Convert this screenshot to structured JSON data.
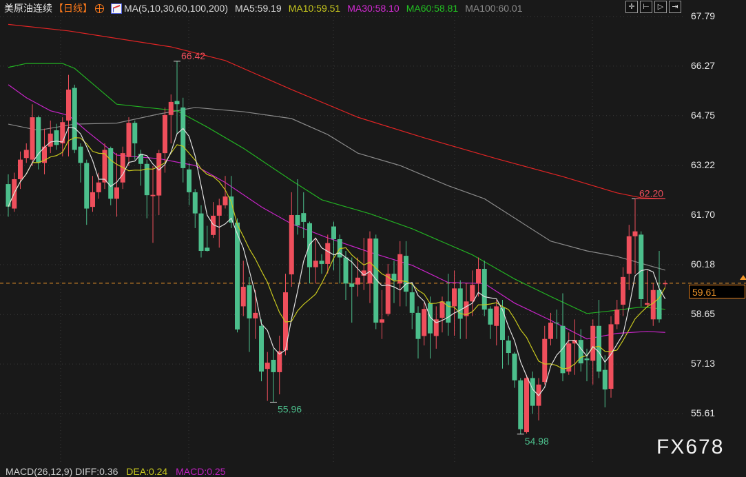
{
  "header": {
    "instrument": "美原油连续",
    "period": "【日线】",
    "ma_definition": "MA(5,10,30,60,100,200)",
    "ma_values": [
      {
        "label": "MA5:59.19",
        "color": "#dcdcdc"
      },
      {
        "label": "MA10:59.51",
        "color": "#c8c81e"
      },
      {
        "label": "MA30:58.10",
        "color": "#d42ad4"
      },
      {
        "label": "MA60:58.81",
        "color": "#22c022"
      },
      {
        "label": "MA100:60.01",
        "color": "#8a8a8a"
      }
    ]
  },
  "toolbar": {
    "icons": [
      "crosshair-icon",
      "zoom-range-icon",
      "step-forward-icon",
      "move-right-icon"
    ],
    "glyphs": [
      "✛",
      "⊢",
      "▷",
      "⇥"
    ]
  },
  "current_price": {
    "label": "59.61",
    "value": 59.61,
    "color": "#f0962a"
  },
  "watermark": "FX678",
  "macd": {
    "def": "MACD(26,12,9) DIFF:0.36",
    "dea": "DEA:0.24",
    "macd": "MACD:0.25",
    "colors": {
      "def": "#cfcfcf",
      "dea": "#c8c81e",
      "macd": "#c020c0"
    }
  },
  "chart_data": {
    "type": "candlestick",
    "ylim": [
      54.7,
      67.79
    ],
    "y_ticks": [
      "67.79",
      "66.27",
      "64.75",
      "63.22",
      "61.70",
      "60.18",
      "58.65",
      "57.13",
      "55.61"
    ],
    "grid": true,
    "colors": {
      "up": "#ef4f5c",
      "down": "#4cbf8c"
    },
    "candles_ohlc": [
      [
        62.65,
        62.95,
        61.65,
        61.96
      ],
      [
        61.9,
        63.0,
        61.8,
        62.8
      ],
      [
        62.8,
        63.65,
        62.5,
        63.4
      ],
      [
        63.45,
        63.9,
        63.3,
        63.7
      ],
      [
        63.4,
        65.1,
        63.2,
        64.7
      ],
      [
        64.7,
        64.75,
        63.1,
        63.3
      ],
      [
        63.3,
        64.35,
        62.95,
        63.8
      ],
      [
        63.8,
        64.6,
        63.6,
        64.2
      ],
      [
        64.3,
        64.5,
        63.7,
        63.85
      ],
      [
        63.9,
        64.7,
        63.5,
        64.55
      ],
      [
        64.6,
        66.0,
        63.5,
        65.55
      ],
      [
        65.6,
        65.7,
        63.6,
        63.7
      ],
      [
        63.8,
        63.9,
        62.7,
        63.3
      ],
      [
        63.3,
        63.4,
        61.4,
        61.9
      ],
      [
        61.95,
        62.9,
        61.8,
        62.4
      ],
      [
        62.4,
        63.0,
        62.2,
        62.7
      ],
      [
        62.7,
        63.9,
        62.5,
        63.7
      ],
      [
        63.75,
        63.8,
        62.0,
        62.2
      ],
      [
        62.2,
        63.6,
        61.65,
        62.55
      ],
      [
        62.7,
        63.8,
        62.5,
        63.6
      ],
      [
        63.48,
        64.7,
        63.2,
        64.53
      ],
      [
        64.53,
        64.6,
        63.4,
        63.9
      ],
      [
        63.58,
        63.7,
        62.6,
        63.27
      ],
      [
        63.27,
        63.4,
        61.6,
        62.31
      ],
      [
        62.28,
        63.2,
        60.85,
        62.32
      ],
      [
        62.3,
        63.7,
        61.7,
        63.6
      ],
      [
        63.6,
        65.0,
        63.0,
        64.77
      ],
      [
        64.77,
        65.4,
        63.9,
        65.17
      ],
      [
        65.2,
        66.42,
        64.2,
        65.1
      ],
      [
        65.0,
        65.3,
        62.7,
        63.14
      ],
      [
        63.1,
        63.3,
        62.0,
        62.4
      ],
      [
        62.4,
        62.5,
        61.3,
        61.75
      ],
      [
        61.75,
        62.0,
        60.4,
        60.6
      ],
      [
        60.7,
        61.37,
        60.58,
        60.6
      ],
      [
        61.09,
        62.1,
        61.0,
        61.68
      ],
      [
        61.68,
        62.2,
        60.7,
        62.0
      ],
      [
        62.0,
        62.9,
        61.9,
        62.27
      ],
      [
        62.27,
        62.9,
        61.3,
        61.47
      ],
      [
        61.47,
        61.6,
        58.1,
        58.19
      ],
      [
        58.9,
        60.3,
        58.6,
        59.5
      ],
      [
        59.55,
        59.8,
        57.5,
        58.53
      ],
      [
        58.53,
        59.4,
        57.9,
        58.7
      ],
      [
        58.3,
        58.5,
        56.6,
        56.9
      ],
      [
        56.98,
        57.5,
        56.0,
        57.17
      ],
      [
        57.26,
        57.6,
        55.96,
        56.88
      ],
      [
        56.88,
        58.0,
        56.2,
        57.52
      ],
      [
        57.55,
        59.9,
        57.4,
        59.33
      ],
      [
        59.88,
        62.4,
        59.5,
        61.7
      ],
      [
        61.7,
        62.8,
        61.1,
        61.38
      ],
      [
        61.76,
        62.4,
        61.0,
        61.49
      ],
      [
        61.45,
        61.5,
        59.6,
        60.1
      ],
      [
        60.1,
        61.0,
        59.6,
        60.3
      ],
      [
        60.3,
        60.5,
        59.9,
        60.2
      ],
      [
        60.2,
        61.1,
        59.9,
        60.84
      ],
      [
        61.35,
        61.5,
        60.0,
        60.96
      ],
      [
        60.96,
        61.1,
        59.6,
        60.4
      ],
      [
        60.4,
        60.6,
        59.1,
        59.6
      ],
      [
        59.6,
        60.4,
        58.4,
        59.5
      ],
      [
        59.57,
        60.4,
        59.2,
        59.78
      ],
      [
        59.84,
        61.0,
        59.4,
        60.0
      ],
      [
        59.6,
        61.2,
        59.0,
        60.98
      ],
      [
        60.98,
        61.1,
        58.2,
        58.4
      ],
      [
        58.4,
        59.4,
        57.9,
        58.5
      ],
      [
        58.67,
        60.2,
        58.6,
        59.9
      ],
      [
        59.9,
        60.3,
        59.0,
        59.7
      ],
      [
        59.6,
        60.9,
        58.9,
        60.5
      ],
      [
        60.45,
        60.9,
        58.9,
        59.35
      ],
      [
        59.33,
        59.6,
        58.2,
        58.7
      ],
      [
        58.7,
        58.9,
        57.3,
        57.9
      ],
      [
        57.99,
        59.0,
        57.7,
        58.82
      ],
      [
        59.0,
        59.2,
        57.3,
        58.07
      ],
      [
        57.99,
        58.9,
        57.6,
        58.5
      ],
      [
        58.55,
        59.2,
        58.1,
        59.05
      ],
      [
        59.05,
        59.9,
        58.0,
        58.4
      ],
      [
        58.9,
        60.0,
        58.0,
        59.45
      ],
      [
        59.45,
        59.7,
        57.9,
        58.52
      ],
      [
        58.6,
        59.6,
        57.9,
        59.05
      ],
      [
        59.05,
        60.0,
        58.6,
        59.56
      ],
      [
        59.6,
        60.4,
        59.2,
        60.05
      ],
      [
        60.05,
        60.3,
        58.6,
        58.8
      ],
      [
        58.83,
        58.9,
        57.9,
        58.34
      ],
      [
        58.3,
        59.1,
        57.7,
        58.9
      ],
      [
        58.86,
        59.1,
        56.99,
        57.87
      ],
      [
        57.85,
        58.0,
        57.1,
        57.47
      ],
      [
        57.45,
        57.5,
        56.4,
        56.63
      ],
      [
        56.63,
        56.7,
        54.98,
        55.13
      ],
      [
        55.04,
        56.8,
        55.0,
        56.7
      ],
      [
        56.7,
        56.9,
        55.6,
        55.85
      ],
      [
        55.85,
        56.7,
        55.4,
        56.5
      ],
      [
        56.58,
        58.3,
        56.5,
        57.9
      ],
      [
        57.9,
        58.7,
        57.7,
        58.4
      ],
      [
        58.4,
        58.8,
        57.9,
        58.38
      ],
      [
        58.3,
        59.3,
        56.6,
        56.85
      ],
      [
        56.9,
        58.1,
        56.8,
        57.76
      ],
      [
        57.76,
        58.5,
        56.8,
        57.87
      ],
      [
        57.87,
        58.2,
        56.9,
        57.15
      ],
      [
        57.3,
        57.6,
        56.6,
        57.25
      ],
      [
        57.23,
        58.5,
        56.5,
        58.3
      ],
      [
        58.3,
        59.1,
        56.7,
        56.9
      ],
      [
        56.95,
        57.4,
        55.8,
        56.35
      ],
      [
        56.37,
        58.6,
        56.1,
        58.35
      ],
      [
        58.35,
        59.1,
        58.2,
        58.8
      ],
      [
        58.95,
        60.1,
        58.6,
        59.8
      ],
      [
        59.9,
        61.4,
        59.4,
        61.05
      ],
      [
        61.05,
        62.2,
        59.9,
        61.2
      ],
      [
        61.1,
        61.2,
        58.9,
        59.12
      ],
      [
        58.95,
        60.0,
        58.9,
        59.0
      ],
      [
        58.5,
        59.6,
        58.3,
        59.4
      ],
      [
        59.4,
        60.6,
        58.4,
        58.5
      ],
      [
        59.58,
        59.7,
        59.5,
        59.61
      ]
    ],
    "moving_averages": [
      {
        "name": "MA200",
        "color": "#e02424",
        "points": [
          [
            0,
            67.55
          ],
          [
            10,
            67.35
          ],
          [
            27,
            66.86
          ],
          [
            36,
            66.44
          ],
          [
            47,
            65.55
          ],
          [
            58,
            64.7
          ],
          [
            69,
            64.07
          ],
          [
            81,
            63.43
          ],
          [
            92,
            62.88
          ],
          [
            101,
            62.38
          ],
          [
            105,
            62.23
          ],
          [
            109,
            62.2
          ]
        ]
      },
      {
        "name": "MA100",
        "color": "#8a8a8a",
        "points": [
          [
            0,
            64.49
          ],
          [
            5,
            64.3
          ],
          [
            11,
            64.49
          ],
          [
            18,
            64.52
          ],
          [
            25,
            64.8
          ],
          [
            31,
            65.0
          ],
          [
            39,
            64.87
          ],
          [
            47,
            64.66
          ],
          [
            53,
            64.17
          ],
          [
            58,
            63.6
          ],
          [
            65,
            63.22
          ],
          [
            73,
            62.6
          ],
          [
            79,
            62.2
          ],
          [
            85,
            61.49
          ],
          [
            90,
            60.9
          ],
          [
            96,
            60.6
          ],
          [
            101,
            60.43
          ],
          [
            109,
            60.01
          ]
        ]
      },
      {
        "name": "MA60",
        "color": "#22b022",
        "points": [
          [
            0,
            66.23
          ],
          [
            3,
            66.35
          ],
          [
            9,
            66.35
          ],
          [
            11,
            66.2
          ],
          [
            18,
            65.1
          ],
          [
            25,
            64.96
          ],
          [
            28,
            64.9
          ],
          [
            33,
            64.4
          ],
          [
            39,
            63.75
          ],
          [
            47,
            62.76
          ],
          [
            52,
            62.17
          ],
          [
            60,
            61.74
          ],
          [
            67,
            61.28
          ],
          [
            77,
            60.48
          ],
          [
            84,
            59.74
          ],
          [
            90,
            59.2
          ],
          [
            96,
            58.68
          ],
          [
            101,
            58.78
          ],
          [
            105,
            58.88
          ],
          [
            109,
            58.81
          ]
        ]
      },
      {
        "name": "MA30",
        "color": "#c824c8",
        "points": [
          [
            0,
            65.7
          ],
          [
            3,
            65.3
          ],
          [
            7,
            64.9
          ],
          [
            10,
            64.76
          ],
          [
            13,
            64.28
          ],
          [
            18,
            63.54
          ],
          [
            25,
            63.43
          ],
          [
            31,
            63.22
          ],
          [
            36,
            62.7
          ],
          [
            42,
            61.95
          ],
          [
            47,
            61.43
          ],
          [
            53,
            61.0
          ],
          [
            60,
            60.56
          ],
          [
            67,
            60.16
          ],
          [
            73,
            59.63
          ],
          [
            79,
            59.6
          ],
          [
            84,
            59.0
          ],
          [
            90,
            58.47
          ],
          [
            96,
            57.9
          ],
          [
            101,
            58.07
          ],
          [
            106,
            58.13
          ],
          [
            109,
            58.1
          ]
        ]
      }
    ],
    "computed_averages": [
      {
        "name": "MA10",
        "period": 10,
        "color": "#c8c81e"
      },
      {
        "name": "MA5",
        "period": 5,
        "color": "#e0e0e0"
      }
    ],
    "annotations": [
      {
        "text": "66.42",
        "index": 28,
        "value": 66.42,
        "kind": "high",
        "color": "#ef4f5c"
      },
      {
        "text": "55.96",
        "index": 44,
        "value": 55.96,
        "kind": "low",
        "color": "#4cbf8c"
      },
      {
        "text": "54.98",
        "index": 85,
        "value": 54.98,
        "kind": "low",
        "color": "#4cbf8c"
      },
      {
        "text": "62.20",
        "index": 104,
        "value": 62.2,
        "kind": "high",
        "color": "#ef4f5c"
      }
    ]
  }
}
